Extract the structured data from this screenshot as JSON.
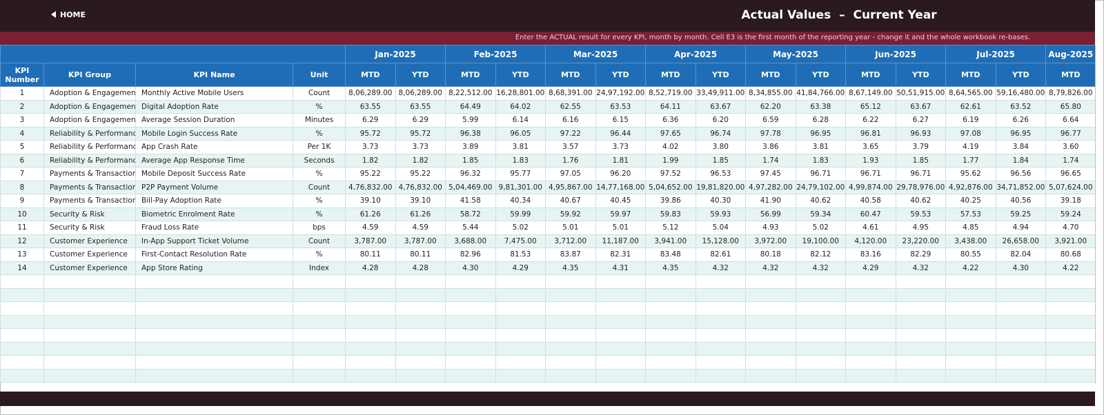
{
  "header": {
    "home": "HOME",
    "title": "Actual Values  –  Current Year",
    "instruction": "Enter the ACTUAL result for every KPI, month by month. Cell E3 is the first month of the reporting year - change it and the whole workbook re-bases."
  },
  "table": {
    "columns": [
      "KPI Number",
      "KPI Group",
      "KPI Name",
      "Unit"
    ],
    "months": [
      "Jan-2025",
      "Feb-2025",
      "Mar-2025",
      "Apr-2025",
      "May-2025",
      "Jun-2025",
      "Jul-2025",
      "Aug-2025"
    ],
    "subheaders": [
      "MTD",
      "YTD"
    ],
    "rows": [
      [
        "1",
        "Adoption & Engagement",
        "Monthly Active Mobile Users",
        "Count",
        "8,06,289.00",
        "8,06,289.00",
        "8,22,512.00",
        "16,28,801.00",
        "8,68,391.00",
        "24,97,192.00",
        "8,52,719.00",
        "33,49,911.00",
        "8,34,855.00",
        "41,84,766.00",
        "8,67,149.00",
        "50,51,915.00",
        "8,64,565.00",
        "59,16,480.00",
        "8,79,826.00"
      ],
      [
        "2",
        "Adoption & Engagement",
        "Digital Adoption Rate",
        "%",
        "63.55",
        "63.55",
        "64.49",
        "64.02",
        "62.55",
        "63.53",
        "64.11",
        "63.67",
        "62.20",
        "63.38",
        "65.12",
        "63.67",
        "62.61",
        "63.52",
        "65.80"
      ],
      [
        "3",
        "Adoption & Engagement",
        "Average Session Duration",
        "Minutes",
        "6.29",
        "6.29",
        "5.99",
        "6.14",
        "6.16",
        "6.15",
        "6.36",
        "6.20",
        "6.59",
        "6.28",
        "6.22",
        "6.27",
        "6.19",
        "6.26",
        "6.64"
      ],
      [
        "4",
        "Reliability & Performance",
        "Mobile Login Success Rate",
        "%",
        "95.72",
        "95.72",
        "96.38",
        "96.05",
        "97.22",
        "96.44",
        "97.65",
        "96.74",
        "97.78",
        "96.95",
        "96.81",
        "96.93",
        "97.08",
        "96.95",
        "96.77"
      ],
      [
        "5",
        "Reliability & Performance",
        "App Crash Rate",
        "Per 1K",
        "3.73",
        "3.73",
        "3.89",
        "3.81",
        "3.57",
        "3.73",
        "4.02",
        "3.80",
        "3.86",
        "3.81",
        "3.65",
        "3.79",
        "4.19",
        "3.84",
        "3.60"
      ],
      [
        "6",
        "Reliability & Performance",
        "Average App Response Time",
        "Seconds",
        "1.82",
        "1.82",
        "1.85",
        "1.83",
        "1.76",
        "1.81",
        "1.99",
        "1.85",
        "1.74",
        "1.83",
        "1.93",
        "1.85",
        "1.77",
        "1.84",
        "1.74"
      ],
      [
        "7",
        "Payments & Transactions",
        "Mobile Deposit Success Rate",
        "%",
        "95.22",
        "95.22",
        "96.32",
        "95.77",
        "97.05",
        "96.20",
        "97.52",
        "96.53",
        "97.45",
        "96.71",
        "96.71",
        "96.71",
        "95.62",
        "96.56",
        "96.65"
      ],
      [
        "8",
        "Payments & Transactions",
        "P2P Payment Volume",
        "Count",
        "4,76,832.00",
        "4,76,832.00",
        "5,04,469.00",
        "9,81,301.00",
        "4,95,867.00",
        "14,77,168.00",
        "5,04,652.00",
        "19,81,820.00",
        "4,97,282.00",
        "24,79,102.00",
        "4,99,874.00",
        "29,78,976.00",
        "4,92,876.00",
        "34,71,852.00",
        "5,07,624.00"
      ],
      [
        "9",
        "Payments & Transactions",
        "Bill-Pay Adoption Rate",
        "%",
        "39.10",
        "39.10",
        "41.58",
        "40.34",
        "40.67",
        "40.45",
        "39.86",
        "40.30",
        "41.90",
        "40.62",
        "40.58",
        "40.62",
        "40.25",
        "40.56",
        "39.18"
      ],
      [
        "10",
        "Security & Risk",
        "Biometric Enrolment Rate",
        "%",
        "61.26",
        "61.26",
        "58.72",
        "59.99",
        "59.92",
        "59.97",
        "59.83",
        "59.93",
        "56.99",
        "59.34",
        "60.47",
        "59.53",
        "57.53",
        "59.25",
        "59.24"
      ],
      [
        "11",
        "Security & Risk",
        "Fraud Loss Rate",
        "bps",
        "4.59",
        "4.59",
        "5.44",
        "5.02",
        "5.01",
        "5.01",
        "5.12",
        "5.04",
        "4.93",
        "5.02",
        "4.61",
        "4.95",
        "4.85",
        "4.94",
        "4.70"
      ],
      [
        "12",
        "Customer Experience",
        "In-App Support Ticket Volume",
        "Count",
        "3,787.00",
        "3,787.00",
        "3,688.00",
        "7,475.00",
        "3,712.00",
        "11,187.00",
        "3,941.00",
        "15,128.00",
        "3,972.00",
        "19,100.00",
        "4,120.00",
        "23,220.00",
        "3,438.00",
        "26,658.00",
        "3,921.00"
      ],
      [
        "13",
        "Customer Experience",
        "First-Contact Resolution Rate",
        "%",
        "80.11",
        "80.11",
        "82.96",
        "81.53",
        "83.87",
        "82.31",
        "83.48",
        "82.61",
        "80.18",
        "82.12",
        "83.16",
        "82.29",
        "80.55",
        "82.04",
        "80.68"
      ],
      [
        "14",
        "Customer Experience",
        "App Store Rating",
        "Index",
        "4.28",
        "4.28",
        "4.30",
        "4.29",
        "4.35",
        "4.31",
        "4.35",
        "4.32",
        "4.32",
        "4.32",
        "4.29",
        "4.32",
        "4.22",
        "4.30",
        "4.22"
      ]
    ]
  }
}
